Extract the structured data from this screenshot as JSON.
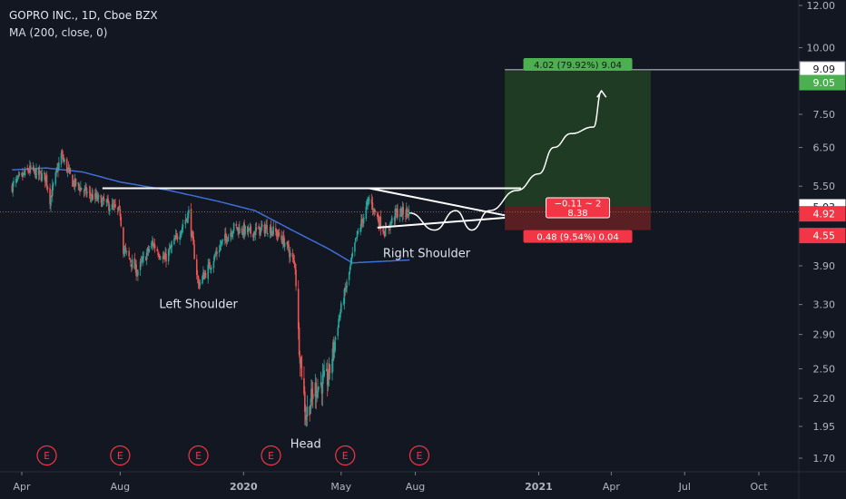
{
  "header": {
    "symbol_line": "GOPRO INC., 1D, Cboe BZX",
    "indicator_line": "MA (200, close, 0)"
  },
  "colors": {
    "background": "#131722",
    "candle_up": "#26a69a",
    "candle_down": "#ef5350",
    "ma_line": "#3d6fd6",
    "profit_zone": "#1f3b23",
    "loss_zone": "#5a1f22",
    "profit_label": "#4caf50",
    "loss_label": "#f23645",
    "drawing": "#ffffff",
    "current_price_line": "#f23645",
    "earnings_marker": "#f23645"
  },
  "chart_data": {
    "type": "candlestick",
    "title": "GOPRO INC., 1D, Cboe BZX",
    "indicator": "MA (200, close, 0)",
    "x_axis": {
      "ticks": [
        {
          "label": "Apr",
          "date": "2019-04-01"
        },
        {
          "label": "Aug",
          "date": "2019-08-01"
        },
        {
          "label": "2020",
          "date": "2020-01-01"
        },
        {
          "label": "May",
          "date": "2020-05-01"
        },
        {
          "label": "Aug",
          "date": "2020-08-01"
        },
        {
          "label": "2021",
          "date": "2021-01-01"
        },
        {
          "label": "Apr",
          "date": "2021-04-01"
        },
        {
          "label": "Jul",
          "date": "2021-07-01"
        },
        {
          "label": "Oct",
          "date": "2021-10-01"
        }
      ]
    },
    "y_axis": {
      "scale": "log",
      "ticks": [
        1.7,
        1.95,
        2.2,
        2.5,
        2.9,
        3.3,
        3.9,
        5.5,
        6.5,
        7.5,
        10.0,
        12.0
      ],
      "tick_labels": [
        "1.70",
        "1.95",
        "2.20",
        "2.50",
        "2.90",
        "3.30",
        "3.90",
        "5.50",
        "6.50",
        "7.50",
        "10.00",
        "12.00"
      ],
      "range": [
        1.6,
        12.6
      ]
    },
    "price_path": [
      [
        "2019-03-20",
        5.5
      ],
      [
        "2019-04-10",
        5.9
      ],
      [
        "2019-05-01",
        5.7
      ],
      [
        "2019-05-06",
        5.2
      ],
      [
        "2019-05-20",
        6.3
      ],
      [
        "2019-06-03",
        5.6
      ],
      [
        "2019-06-24",
        5.3
      ],
      [
        "2019-07-15",
        5.1
      ],
      [
        "2019-08-01",
        4.9
      ],
      [
        "2019-08-05",
        4.2
      ],
      [
        "2019-08-22",
        3.8
      ],
      [
        "2019-09-10",
        4.3
      ],
      [
        "2019-09-25",
        4.0
      ],
      [
        "2019-10-10",
        4.4
      ],
      [
        "2019-10-25",
        4.9
      ],
      [
        "2019-11-06",
        3.6
      ],
      [
        "2019-11-20",
        3.9
      ],
      [
        "2019-12-05",
        4.3
      ],
      [
        "2019-12-20",
        4.6
      ],
      [
        "2020-01-10",
        4.5
      ],
      [
        "2020-01-31",
        4.6
      ],
      [
        "2020-02-10",
        4.5
      ],
      [
        "2020-02-22",
        4.3
      ],
      [
        "2020-03-05",
        3.9
      ],
      [
        "2020-03-09",
        2.9
      ],
      [
        "2020-03-18",
        2.05
      ],
      [
        "2020-03-30",
        2.3
      ],
      [
        "2020-04-15",
        2.4
      ],
      [
        "2020-04-28",
        3.1
      ],
      [
        "2020-05-08",
        3.6
      ],
      [
        "2020-05-20",
        4.4
      ],
      [
        "2020-06-05",
        5.2
      ],
      [
        "2020-06-15",
        4.8
      ],
      [
        "2020-06-25",
        4.5
      ],
      [
        "2020-07-08",
        4.9
      ],
      [
        "2020-07-25",
        4.92
      ]
    ],
    "moving_average_200": [
      [
        "2019-03-20",
        5.9
      ],
      [
        "2019-05-01",
        5.95
      ],
      [
        "2019-06-15",
        5.85
      ],
      [
        "2019-08-01",
        5.6
      ],
      [
        "2019-10-01",
        5.4
      ],
      [
        "2019-12-01",
        5.15
      ],
      [
        "2020-01-15",
        4.95
      ],
      [
        "2020-03-01",
        4.55
      ],
      [
        "2020-04-15",
        4.2
      ],
      [
        "2020-05-15",
        3.95
      ],
      [
        "2020-07-25",
        4.0
      ]
    ],
    "earnings_markers": [
      {
        "label": "E",
        "date": "2019-05-02"
      },
      {
        "label": "E",
        "date": "2019-08-01"
      },
      {
        "label": "E",
        "date": "2019-11-06"
      },
      {
        "label": "E",
        "date": "2020-02-04"
      },
      {
        "label": "E",
        "date": "2020-05-06"
      },
      {
        "label": "E",
        "date": "2020-08-06"
      }
    ],
    "annotations": [
      {
        "text": "Left Shoulder",
        "date": "2019-11-06",
        "price": 3.25
      },
      {
        "text": "Head",
        "date": "2020-03-18",
        "price": 1.78
      },
      {
        "text": "Right Shoulder",
        "date": "2020-08-15",
        "price": 4.05
      }
    ],
    "neckline": {
      "price": 5.45,
      "from": "2019-07-10",
      "to": "2020-12-10"
    },
    "triangle": {
      "upper": [
        [
          "2020-06-05",
          5.45
        ],
        [
          "2020-11-20",
          4.85
        ]
      ],
      "lower": [
        [
          "2020-06-15",
          4.6
        ],
        [
          "2020-11-20",
          4.8
        ]
      ]
    },
    "projected_path": [
      [
        "2020-07-25",
        4.9
      ],
      [
        "2020-08-25",
        4.55
      ],
      [
        "2020-09-20",
        4.95
      ],
      [
        "2020-10-10",
        4.55
      ],
      [
        "2020-11-01",
        4.95
      ],
      [
        "2020-12-05",
        5.4
      ],
      [
        "2021-01-01",
        5.8
      ],
      [
        "2021-01-20",
        6.5
      ],
      [
        "2021-02-10",
        6.9
      ],
      [
        "2021-03-10",
        7.1
      ],
      [
        "2021-03-20",
        8.3
      ]
    ],
    "long_position": {
      "start": "2020-11-20",
      "end": "2021-05-20",
      "entry": 5.03,
      "target": 9.05,
      "stop": 4.55,
      "target_label": "4.02 (79.92%) 9.04",
      "stop_label": "0.48 (9.54%) 0.04",
      "center_label_line1": "−0.11 ~ 2",
      "center_label_line2": "8.38"
    },
    "horizontal_line": {
      "price": 9.09
    },
    "price_tags": [
      {
        "label": "9.09",
        "price": 9.09,
        "style": "line"
      },
      {
        "label": "9.05",
        "price": 9.05,
        "style": "profit"
      },
      {
        "label": "5.03",
        "price": 5.03,
        "style": "entry"
      },
      {
        "label": "4.92",
        "price": 4.92,
        "style": "last"
      },
      {
        "label": "4.55",
        "price": 4.55,
        "style": "stop"
      }
    ],
    "last_price": 4.92
  }
}
